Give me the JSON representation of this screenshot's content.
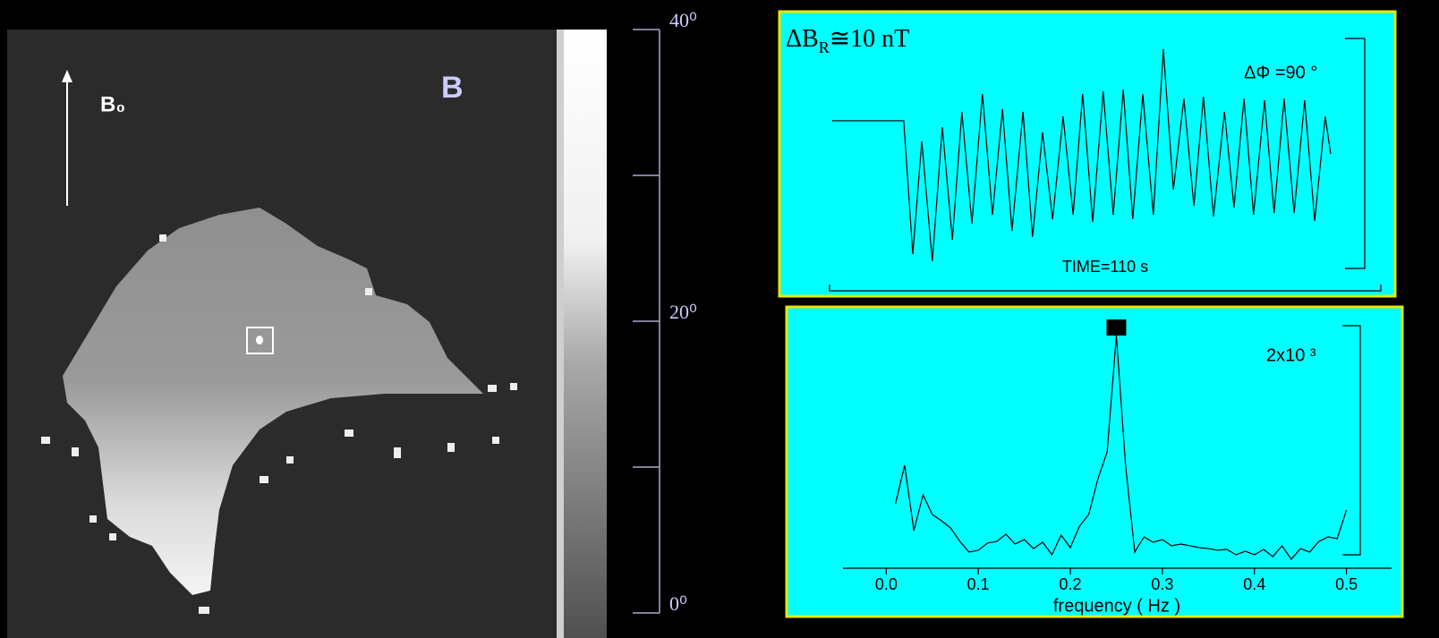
{
  "image": {
    "label": "B",
    "field_label": "B₀"
  },
  "chart_data": [
    {
      "type": "colorbar",
      "ylim": [
        0,
        40
      ],
      "yticks": [
        {
          "value": 0,
          "label": "0⁰"
        },
        {
          "value": 10,
          "label": null
        },
        {
          "value": 20,
          "label": "20⁰"
        },
        {
          "value": 30,
          "label": null
        },
        {
          "value": 40,
          "label": "40⁰"
        }
      ]
    },
    {
      "type": "line",
      "title_parts": [
        "ΔB",
        "R",
        "≅10 nT"
      ],
      "scale_label": "ΔΦ =90 °",
      "time_label": "TIME=110 s",
      "color": "#000000",
      "xlim": [
        0,
        110
      ],
      "ylim": [
        0,
        90
      ],
      "x": [
        0.5,
        14.8,
        16.6,
        18.4,
        20.5,
        22.5,
        24.5,
        26.4,
        28.4,
        30.5,
        32.5,
        34.5,
        36.4,
        38.6,
        40.5,
        42.5,
        44.5,
        46.6,
        48.6,
        50.5,
        52.5,
        54.6,
        56.6,
        58.6,
        60.5,
        62.5,
        64.6,
        66.6,
        68.6,
        70.7,
        72.7,
        74.6,
        76.6,
        78.8,
        80.7,
        82.7,
        84.6,
        86.8,
        88.7,
        90.7,
        92.7,
        94.8,
        96.8,
        98.9,
        100
      ],
      "values": [
        57.8,
        57.8,
        5.6,
        49.7,
        2.8,
        55.3,
        11.2,
        61.3,
        17.5,
        68.3,
        21.0,
        62.3,
        14.7,
        61.3,
        12.3,
        53.2,
        19.3,
        59.5,
        21.0,
        68.3,
        18.2,
        69.3,
        21.0,
        70.0,
        19.3,
        68.3,
        21.0,
        85.8,
        30.8,
        66.5,
        24.5,
        67.2,
        20.3,
        61.3,
        23.8,
        66.5,
        21.0,
        65.8,
        21.7,
        66.5,
        21.7,
        65.8,
        18.6,
        59.5,
        44.8
      ]
    },
    {
      "type": "line",
      "scale_label": "2x10 ³",
      "xlabel": "frequency ( Hz )",
      "color": "#000000",
      "xlim": [
        -0.047,
        0.549
      ],
      "ylim": [
        0,
        2000
      ],
      "xticks": [
        {
          "value": 0,
          "label": "0.0"
        },
        0.1,
        0.2,
        0.3,
        0.4,
        0.5
      ],
      "x": [
        0.01,
        0.02,
        0.03,
        0.04,
        0.05,
        0.06,
        0.07,
        0.08,
        0.09,
        0.1,
        0.11,
        0.12,
        0.13,
        0.14,
        0.15,
        0.16,
        0.17,
        0.18,
        0.19,
        0.2,
        0.21,
        0.22,
        0.23,
        0.24,
        0.25,
        0.26,
        0.27,
        0.28,
        0.29,
        0.3,
        0.31,
        0.32,
        0.33,
        0.34,
        0.35,
        0.36,
        0.37,
        0.38,
        0.39,
        0.4,
        0.41,
        0.42,
        0.43,
        0.44,
        0.45,
        0.46,
        0.47,
        0.48,
        0.49,
        0.5
      ],
      "values": [
        531,
        849,
        310,
        605,
        443,
        391,
        332,
        221,
        133,
        148,
        207,
        221,
        280,
        199,
        236,
        162,
        214,
        111,
        273,
        170,
        347,
        443,
        738,
        959,
        1919,
        849,
        133,
        258,
        214,
        236,
        185,
        199,
        185,
        170,
        162,
        148,
        155,
        111,
        140,
        111,
        155,
        96,
        185,
        74,
        162,
        133,
        221,
        258,
        244,
        480
      ],
      "peak_index": 24
    }
  ]
}
